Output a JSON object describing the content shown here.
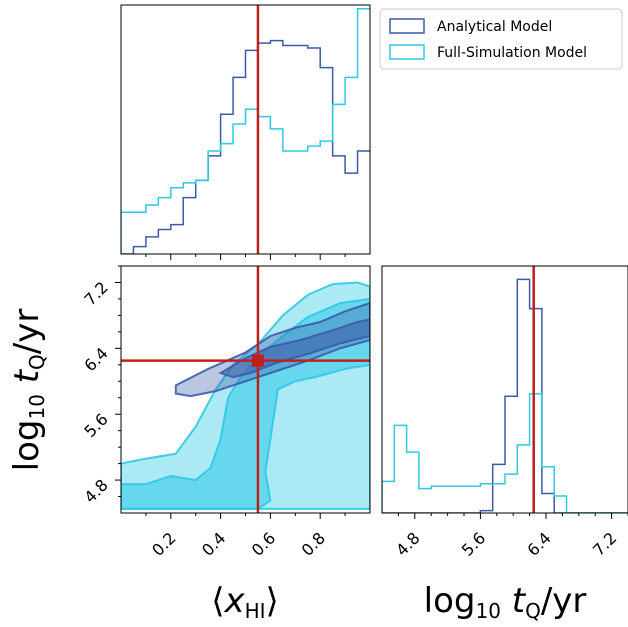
{
  "chart_data": {
    "type": "corner",
    "colors": {
      "analytical": "#3b5ba8",
      "full_simulation": "#2ec9e6",
      "truth": "#c0201c"
    },
    "legend": {
      "position": "top-right",
      "entries": [
        "Analytical Model",
        "Full-Simulation Model"
      ]
    },
    "truth": {
      "x_HI": 0.55,
      "log10_tQ": 6.25
    },
    "axes": {
      "x_HI": {
        "label": "⟨x_HI⟩",
        "range": [
          0.0,
          1.0
        ],
        "ticks": [
          "0.2",
          "0.4",
          "0.6",
          "0.8"
        ],
        "tick_values": [
          0.2,
          0.4,
          0.6,
          0.8
        ]
      },
      "log10_tQ": {
        "label": "log10 tQ/yr",
        "range": [
          4.4,
          7.4
        ],
        "ticks": [
          "4.8",
          "5.6",
          "6.4",
          "7.2"
        ],
        "tick_values": [
          4.8,
          5.6,
          6.4,
          7.2
        ]
      }
    },
    "hist_x_HI": {
      "bin_edges": [
        0.0,
        0.05,
        0.1,
        0.15,
        0.2,
        0.25,
        0.3,
        0.35,
        0.4,
        0.45,
        0.5,
        0.55,
        0.6,
        0.65,
        0.7,
        0.75,
        0.8,
        0.85,
        0.9,
        0.95,
        1.0
      ],
      "series": [
        {
          "name": "Analytical Model",
          "values": [
            0.0,
            0.03,
            0.07,
            0.1,
            0.12,
            0.23,
            0.3,
            0.4,
            0.57,
            0.72,
            0.83,
            0.86,
            0.87,
            0.85,
            0.85,
            0.84,
            0.76,
            0.4,
            0.33,
            0.42
          ]
        },
        {
          "name": "Full-Simulation Model",
          "values": [
            0.17,
            0.17,
            0.2,
            0.23,
            0.27,
            0.29,
            0.3,
            0.42,
            0.45,
            0.53,
            0.59,
            0.56,
            0.51,
            0.42,
            0.42,
            0.44,
            0.46,
            0.61,
            0.72,
            1.0
          ]
        }
      ]
    },
    "hist_log10_tQ": {
      "bin_edges": [
        4.4,
        4.55,
        4.7,
        4.85,
        5.0,
        5.15,
        5.3,
        5.45,
        5.6,
        5.75,
        5.9,
        6.05,
        6.2,
        6.35,
        6.5,
        6.65,
        6.8,
        6.95,
        7.1,
        7.25,
        7.4
      ],
      "series": [
        {
          "name": "Analytical Model",
          "values": [
            0.0,
            0.0,
            0.0,
            0.0,
            0.0,
            0.0,
            0.0,
            0.0,
            0.01,
            0.2,
            0.48,
            0.96,
            0.84,
            0.08,
            0.0,
            0.0,
            0.0,
            0.0,
            0.0,
            0.0
          ]
        },
        {
          "name": "Full-Simulation Model",
          "values": [
            0.13,
            0.36,
            0.25,
            0.1,
            0.11,
            0.11,
            0.11,
            0.11,
            0.12,
            0.12,
            0.16,
            0.28,
            0.49,
            0.19,
            0.07,
            0.0,
            0.0,
            0.0,
            0.0,
            0.0
          ]
        }
      ]
    },
    "contours_2d": [
      {
        "name": "Full-Simulation Model",
        "level": 0.95,
        "points": [
          [
            0.0,
            4.45
          ],
          [
            0.0,
            5.0
          ],
          [
            0.08,
            5.05
          ],
          [
            0.22,
            5.12
          ],
          [
            0.3,
            5.45
          ],
          [
            0.38,
            5.9
          ],
          [
            0.45,
            6.2
          ],
          [
            0.55,
            6.45
          ],
          [
            0.65,
            6.8
          ],
          [
            0.75,
            7.05
          ],
          [
            0.85,
            7.18
          ],
          [
            0.95,
            7.2
          ],
          [
            1.0,
            7.15
          ],
          [
            1.0,
            4.45
          ]
        ]
      },
      {
        "name": "Full-Simulation Model",
        "level": 0.68,
        "points": [
          [
            0.0,
            4.45
          ],
          [
            0.0,
            4.75
          ],
          [
            0.1,
            4.75
          ],
          [
            0.2,
            4.85
          ],
          [
            0.3,
            4.8
          ],
          [
            0.36,
            4.95
          ],
          [
            0.4,
            5.3
          ],
          [
            0.43,
            5.8
          ],
          [
            0.48,
            6.05
          ],
          [
            0.55,
            6.3
          ],
          [
            0.65,
            6.55
          ],
          [
            0.75,
            6.78
          ],
          [
            0.88,
            6.95
          ],
          [
            1.0,
            7.0
          ],
          [
            1.0,
            6.2
          ],
          [
            0.9,
            6.15
          ],
          [
            0.78,
            6.05
          ],
          [
            0.7,
            6.0
          ],
          [
            0.63,
            5.9
          ],
          [
            0.6,
            5.3
          ],
          [
            0.58,
            4.9
          ],
          [
            0.6,
            4.55
          ],
          [
            0.55,
            4.45
          ]
        ]
      },
      {
        "name": "Analytical Model",
        "level": 0.95,
        "points": [
          [
            0.22,
            5.95
          ],
          [
            0.35,
            6.15
          ],
          [
            0.5,
            6.35
          ],
          [
            0.6,
            6.55
          ],
          [
            0.7,
            6.65
          ],
          [
            0.8,
            6.72
          ],
          [
            0.9,
            6.85
          ],
          [
            1.0,
            6.95
          ],
          [
            1.0,
            6.5
          ],
          [
            0.88,
            6.4
          ],
          [
            0.75,
            6.25
          ],
          [
            0.62,
            6.12
          ],
          [
            0.5,
            6.0
          ],
          [
            0.38,
            5.88
          ],
          [
            0.28,
            5.82
          ],
          [
            0.22,
            5.85
          ]
        ]
      },
      {
        "name": "Analytical Model",
        "level": 0.68,
        "points": [
          [
            0.4,
            6.1
          ],
          [
            0.5,
            6.28
          ],
          [
            0.6,
            6.42
          ],
          [
            0.72,
            6.5
          ],
          [
            0.85,
            6.62
          ],
          [
            0.95,
            6.72
          ],
          [
            1.0,
            6.75
          ],
          [
            1.0,
            6.55
          ],
          [
            0.88,
            6.46
          ],
          [
            0.75,
            6.33
          ],
          [
            0.62,
            6.22
          ],
          [
            0.52,
            6.1
          ],
          [
            0.45,
            6.05
          ]
        ]
      }
    ]
  }
}
